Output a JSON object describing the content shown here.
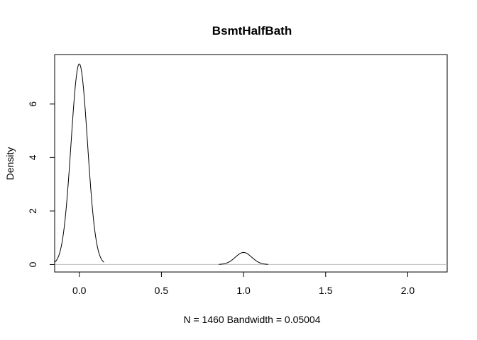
{
  "chart_data": {
    "type": "line",
    "title": "BsmtHalfBath",
    "xlabel": "N = 1460   Bandwidth = 0.05004",
    "ylabel": "Density",
    "xlim": [
      -0.15,
      2.24
    ],
    "ylim": [
      -0.28,
      7.85
    ],
    "x_ticks": [
      0.0,
      0.5,
      1.0,
      1.5,
      2.0
    ],
    "x_tick_labels": [
      "0.0",
      "0.5",
      "1.0",
      "1.5",
      "2.0"
    ],
    "y_ticks": [
      0,
      2,
      4,
      6
    ],
    "y_tick_labels": [
      "0",
      "2",
      "4",
      "6"
    ],
    "grid": false,
    "baseline": 0,
    "colors": {
      "line": "#000000",
      "baseline": "#bebebe",
      "frame": "#000000"
    },
    "series": [
      {
        "components": [
          {
            "center": 0.0,
            "peak": 7.5
          },
          {
            "center": 1.0,
            "peak": 0.45
          }
        ],
        "bandwidth": 0.05004,
        "segments": [
          {
            "from": -0.15,
            "to": 0.15
          },
          {
            "from": 0.85,
            "to": 1.15
          }
        ]
      }
    ]
  }
}
